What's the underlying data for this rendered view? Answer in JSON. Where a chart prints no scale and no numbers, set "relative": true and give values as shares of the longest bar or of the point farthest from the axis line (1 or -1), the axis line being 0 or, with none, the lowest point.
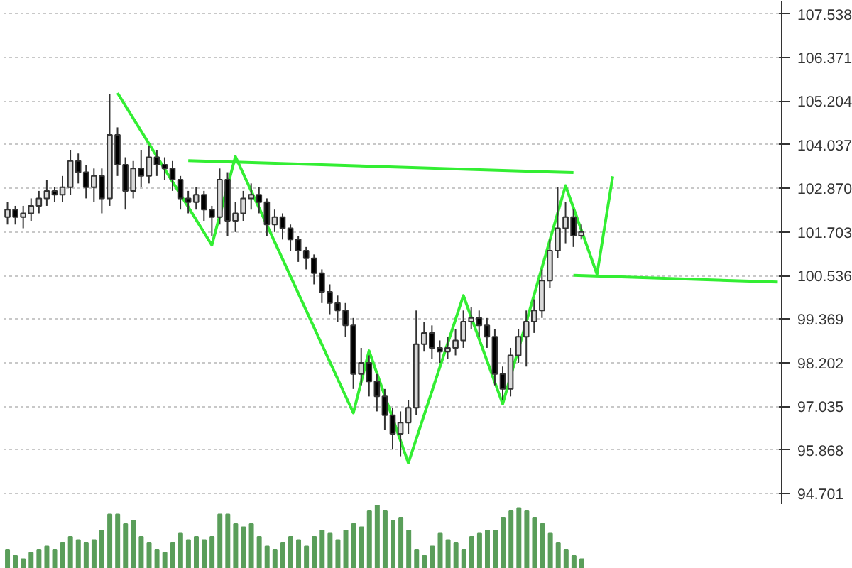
{
  "chart_data": [
    {
      "type": "candlestick",
      "grid": "y",
      "categories": [
        null,
        null,
        null,
        null,
        null,
        null,
        null,
        null,
        null,
        null,
        null,
        null,
        null,
        null,
        null,
        null,
        null,
        null,
        null,
        null,
        null,
        null,
        null,
        null,
        null,
        null,
        null,
        null,
        null,
        null,
        null,
        null,
        null,
        null,
        null,
        null,
        null,
        null,
        null,
        null,
        null,
        null,
        null,
        null,
        null,
        null,
        null,
        null,
        null,
        null,
        null,
        null,
        null,
        null,
        null,
        null,
        null,
        null,
        null,
        null,
        null,
        null,
        null,
        null,
        null,
        null,
        null,
        null,
        null,
        null,
        null,
        null,
        null,
        null,
        null,
        null,
        null,
        null,
        null,
        null,
        null,
        null,
        null,
        null,
        null,
        null,
        null,
        null,
        null,
        null,
        null,
        null,
        null,
        null,
        null,
        null,
        null,
        null,
        null
      ],
      "ylim": [
        94.4,
        107.89
      ],
      "yticks": [
        107.538,
        106.371,
        105.204,
        104.037,
        {
          "value": 102.87,
          "label": "102.870"
        },
        101.703,
        100.536,
        99.369,
        98.202,
        97.035,
        95.868,
        94.701
      ],
      "ohlc": [
        [
          102.1,
          102.5,
          101.9,
          102.3
        ],
        [
          102.3,
          102.4,
          101.9,
          102.1
        ],
        [
          102.1,
          102.4,
          101.8,
          102.2
        ],
        [
          102.2,
          102.6,
          102.0,
          102.4
        ],
        [
          102.4,
          102.8,
          102.2,
          102.6
        ],
        [
          102.6,
          103.1,
          102.4,
          102.8
        ],
        [
          102.8,
          102.9,
          102.5,
          102.7
        ],
        [
          102.7,
          103.2,
          102.5,
          102.9
        ],
        [
          102.9,
          103.9,
          102.7,
          103.6
        ],
        [
          103.6,
          103.8,
          103.0,
          103.3
        ],
        [
          103.3,
          103.5,
          102.6,
          102.9
        ],
        [
          102.9,
          103.4,
          102.5,
          103.2
        ],
        [
          103.2,
          103.4,
          102.2,
          102.6
        ],
        [
          102.6,
          105.4,
          102.4,
          104.3
        ],
        [
          104.3,
          104.5,
          103.2,
          103.5
        ],
        [
          103.5,
          103.7,
          102.3,
          102.8
        ],
        [
          102.8,
          103.6,
          102.6,
          103.4
        ],
        [
          103.4,
          103.9,
          102.9,
          103.2
        ],
        [
          103.2,
          104.0,
          103.0,
          103.7
        ],
        [
          103.7,
          103.9,
          103.2,
          103.5
        ],
        [
          103.5,
          103.7,
          103.1,
          103.4
        ],
        [
          103.4,
          103.6,
          102.8,
          103.1
        ],
        [
          103.1,
          103.2,
          102.3,
          102.6
        ],
        [
          102.6,
          102.8,
          102.2,
          102.5
        ],
        [
          102.5,
          102.9,
          102.3,
          102.7
        ],
        [
          102.7,
          102.8,
          102.0,
          102.3
        ],
        [
          102.3,
          102.4,
          101.6,
          102.1
        ],
        [
          102.1,
          103.4,
          101.9,
          103.1
        ],
        [
          103.1,
          103.3,
          101.6,
          102.0
        ],
        [
          102.0,
          102.5,
          101.7,
          102.2
        ],
        [
          102.2,
          102.8,
          102.0,
          102.6
        ],
        [
          102.6,
          103.0,
          102.3,
          102.7
        ],
        [
          102.7,
          102.9,
          102.2,
          102.5
        ],
        [
          102.5,
          102.6,
          101.6,
          101.9
        ],
        [
          101.9,
          102.3,
          101.7,
          102.1
        ],
        [
          102.1,
          102.2,
          101.5,
          101.8
        ],
        [
          101.8,
          101.9,
          101.2,
          101.5
        ],
        [
          101.5,
          101.6,
          100.9,
          101.2
        ],
        [
          101.2,
          101.3,
          100.7,
          101.0
        ],
        [
          101.0,
          101.1,
          100.3,
          100.6
        ],
        [
          100.6,
          100.7,
          99.8,
          100.1
        ],
        [
          100.1,
          100.3,
          99.5,
          99.8
        ],
        [
          99.8,
          100.0,
          99.3,
          99.6
        ],
        [
          99.6,
          99.8,
          98.9,
          99.2
        ],
        [
          99.2,
          99.4,
          97.5,
          97.9
        ],
        [
          97.9,
          98.6,
          97.6,
          98.2
        ],
        [
          98.2,
          98.4,
          97.3,
          97.7
        ],
        [
          97.7,
          97.9,
          96.9,
          97.3
        ],
        [
          97.3,
          97.5,
          96.4,
          96.8
        ],
        [
          96.8,
          97.0,
          95.9,
          96.3
        ],
        [
          96.3,
          96.9,
          95.7,
          96.6
        ],
        [
          96.6,
          97.2,
          96.3,
          97.0
        ],
        [
          97.0,
          99.6,
          96.8,
          98.7
        ],
        [
          98.7,
          99.3,
          98.5,
          99.0
        ],
        [
          99.0,
          99.2,
          98.3,
          98.6
        ],
        [
          98.6,
          98.8,
          98.2,
          98.5
        ],
        [
          98.5,
          98.9,
          98.3,
          98.6
        ],
        [
          98.6,
          99.1,
          98.4,
          98.8
        ],
        [
          98.8,
          99.6,
          98.6,
          99.3
        ],
        [
          99.3,
          99.7,
          99.1,
          99.4
        ],
        [
          99.4,
          99.6,
          98.9,
          99.2
        ],
        [
          99.2,
          99.4,
          98.6,
          98.9
        ],
        [
          98.9,
          99.1,
          97.6,
          97.9
        ],
        [
          97.9,
          98.1,
          97.2,
          97.5
        ],
        [
          97.5,
          98.6,
          97.3,
          98.4
        ],
        [
          98.4,
          99.1,
          98.2,
          98.9
        ],
        [
          98.9,
          99.6,
          98.1,
          99.3
        ],
        [
          99.3,
          99.9,
          99.0,
          99.6
        ],
        [
          99.6,
          100.7,
          99.4,
          100.4
        ],
        [
          100.4,
          101.5,
          100.2,
          101.2
        ],
        [
          101.2,
          102.9,
          101.0,
          101.8
        ],
        [
          101.8,
          102.5,
          101.4,
          102.1
        ],
        [
          102.1,
          102.3,
          101.3,
          101.6
        ],
        [
          101.6,
          101.9,
          101.5,
          101.7
        ],
        null,
        null,
        null,
        null,
        null,
        null,
        null,
        null,
        null,
        null,
        null,
        null,
        null,
        null,
        null,
        null,
        null,
        null,
        null,
        null,
        null,
        null,
        null,
        null,
        null
      ],
      "series": [
        {
          "type": "line",
          "color": "#33ee33",
          "values": [
            null,
            null,
            null,
            null,
            null,
            null,
            null,
            null,
            null,
            null,
            null,
            null,
            null,
            null,
            105.42,
            null,
            null,
            null,
            null,
            null,
            null,
            null,
            null,
            null,
            null,
            null,
            101.35,
            null,
            null,
            103.72,
            null,
            null,
            null,
            null,
            null,
            null,
            null,
            null,
            null,
            null,
            null,
            null,
            null,
            null,
            96.86,
            null,
            98.52,
            null,
            null,
            null,
            null,
            95.52,
            null,
            null,
            null,
            null,
            null,
            null,
            100.0,
            null,
            null,
            null,
            null,
            97.1,
            null,
            null,
            null,
            null,
            null,
            null,
            null,
            102.94,
            null,
            null,
            null,
            100.57,
            null,
            103.19,
            null,
            null,
            null,
            null,
            null,
            null,
            null,
            null,
            null,
            null,
            null,
            null,
            null,
            null,
            null,
            null,
            null,
            null,
            null,
            null,
            null
          ]
        },
        {
          "type": "line",
          "color": "#33ee33",
          "values": [
            null,
            null,
            null,
            null,
            null,
            null,
            null,
            null,
            null,
            null,
            null,
            null,
            null,
            null,
            null,
            null,
            null,
            null,
            null,
            null,
            null,
            null,
            null,
            103.61,
            null,
            null,
            null,
            null,
            null,
            null,
            null,
            null,
            null,
            null,
            null,
            null,
            null,
            null,
            null,
            null,
            null,
            null,
            null,
            null,
            null,
            null,
            null,
            null,
            null,
            null,
            null,
            null,
            null,
            null,
            null,
            null,
            null,
            null,
            null,
            null,
            null,
            null,
            null,
            null,
            null,
            null,
            null,
            null,
            null,
            null,
            null,
            null,
            103.29,
            null,
            null,
            null,
            null,
            null,
            null,
            null,
            null,
            null,
            null,
            null,
            null,
            null,
            null,
            null,
            null,
            null,
            null,
            null,
            null,
            null,
            null,
            null,
            null,
            null,
            null
          ]
        },
        {
          "type": "line",
          "color": "#33ee33",
          "values": [
            null,
            null,
            null,
            null,
            null,
            null,
            null,
            null,
            null,
            null,
            null,
            null,
            null,
            null,
            null,
            null,
            null,
            null,
            null,
            null,
            null,
            null,
            null,
            null,
            null,
            null,
            null,
            null,
            null,
            null,
            null,
            null,
            null,
            null,
            null,
            null,
            null,
            null,
            null,
            null,
            null,
            null,
            null,
            null,
            null,
            null,
            null,
            null,
            null,
            null,
            null,
            null,
            null,
            null,
            null,
            null,
            null,
            null,
            null,
            null,
            null,
            null,
            null,
            null,
            null,
            null,
            null,
            null,
            null,
            null,
            null,
            null,
            100.54,
            null,
            null,
            null,
            null,
            null,
            null,
            null,
            null,
            null,
            null,
            null,
            null,
            null,
            null,
            null,
            null,
            null,
            null,
            null,
            null,
            null,
            null,
            null,
            null,
            null,
            100.36
          ]
        }
      ]
    },
    {
      "type": "bar",
      "relative": true,
      "color": "#5a9e5a",
      "categories": [
        null,
        null,
        null,
        null,
        null,
        null,
        null,
        null,
        null,
        null,
        null,
        null,
        null,
        null,
        null,
        null,
        null,
        null,
        null,
        null,
        null,
        null,
        null,
        null,
        null,
        null,
        null,
        null,
        null,
        null,
        null,
        null,
        null,
        null,
        null,
        null,
        null,
        null,
        null,
        null,
        null,
        null,
        null,
        null,
        null,
        null,
        null,
        null,
        null,
        null,
        null,
        null,
        null,
        null,
        null,
        null,
        null,
        null,
        null,
        null,
        null,
        null,
        null,
        null,
        null,
        null,
        null,
        null,
        null,
        null,
        null,
        null,
        null,
        null
      ],
      "values": [
        0.3,
        0.2,
        0.15,
        0.25,
        0.3,
        0.35,
        0.3,
        0.4,
        0.5,
        0.45,
        0.4,
        0.45,
        0.6,
        0.85,
        0.85,
        0.7,
        0.75,
        0.5,
        0.4,
        0.3,
        0.25,
        0.4,
        0.55,
        0.45,
        0.5,
        0.45,
        0.5,
        0.85,
        0.85,
        0.7,
        0.65,
        0.7,
        0.5,
        0.35,
        0.3,
        0.4,
        0.5,
        0.45,
        0.35,
        0.5,
        0.6,
        0.55,
        0.45,
        0.6,
        0.7,
        0.65,
        0.9,
        1.0,
        0.9,
        0.75,
        0.8,
        0.6,
        0.3,
        0.2,
        0.35,
        0.55,
        0.45,
        0.4,
        0.3,
        0.5,
        0.55,
        0.6,
        0.6,
        0.8,
        0.9,
        0.95,
        0.9,
        0.8,
        0.7,
        0.55,
        0.4,
        0.3,
        0.2,
        0.15
      ]
    }
  ]
}
